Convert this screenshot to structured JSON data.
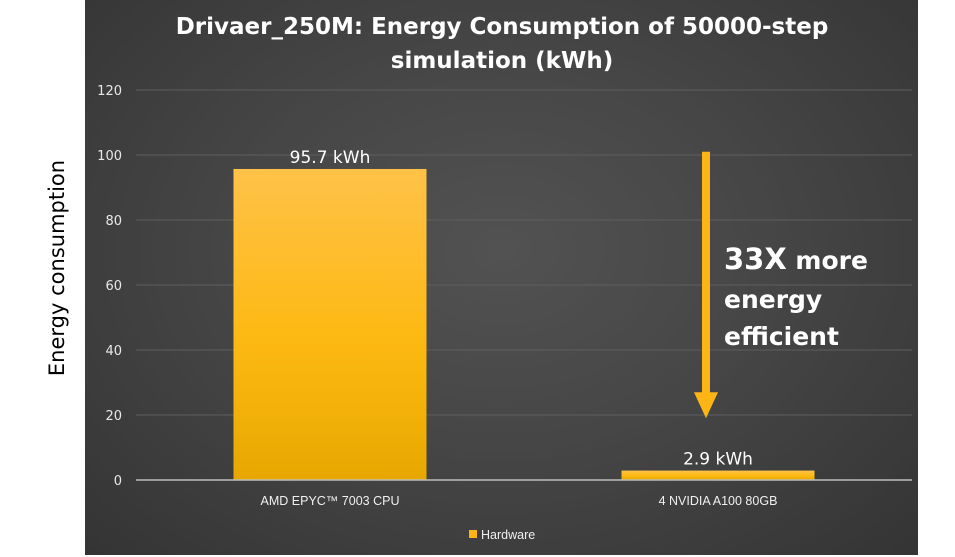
{
  "chart_data": {
    "type": "bar",
    "title_lines": [
      "Drivaer_250M: Energy Consumption of 50000-step",
      "simulation (kWh)"
    ],
    "ylabel": "Energy consumption",
    "xlabel": "",
    "ylim": [
      0,
      120
    ],
    "yticks": [
      0,
      20,
      40,
      60,
      80,
      100,
      120
    ],
    "grid": true,
    "categories": [
      "AMD EPYC™ 7003 CPU",
      "4 NVIDIA A100 80GB"
    ],
    "series": [
      {
        "name": "Hardware",
        "values": [
          95.7,
          2.9
        ],
        "color": "#FDB515"
      }
    ],
    "data_labels": [
      "95.7 kWh",
      "2.9 kWh"
    ],
    "legend": {
      "position": "bottom",
      "label": "Hardware"
    },
    "annotation": {
      "line1_bold": "33X",
      "line1_rest": " more",
      "line2": "energy",
      "line3": "efficient",
      "arrow_from": 101,
      "arrow_to": 19,
      "color": "#FDB515"
    }
  }
}
